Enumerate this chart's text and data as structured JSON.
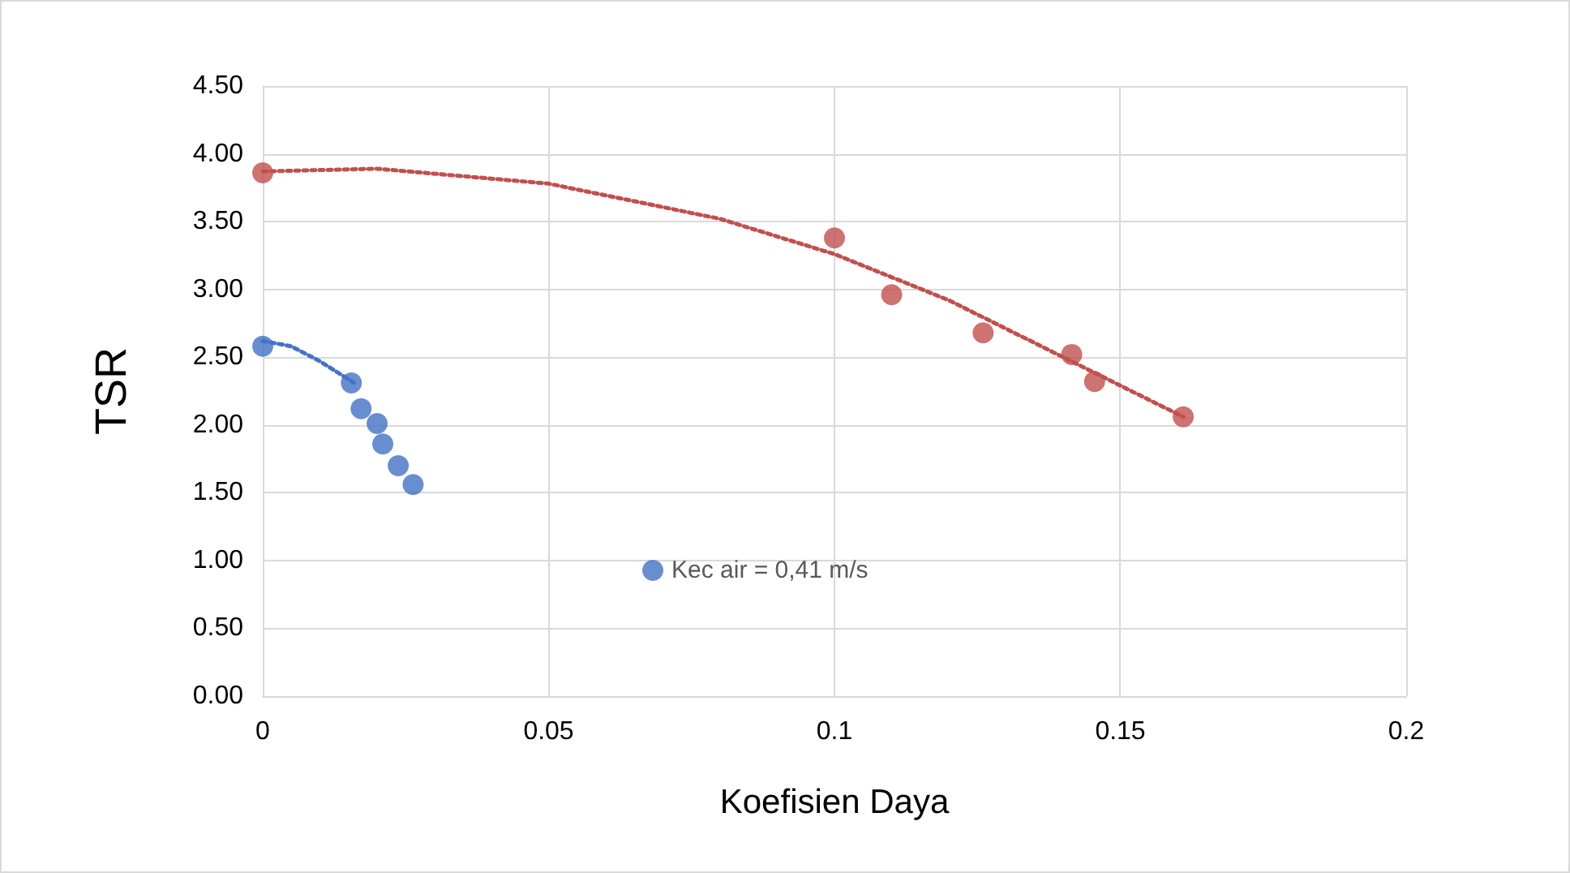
{
  "chart_data": {
    "type": "scatter",
    "xlabel": "Koefisien Daya",
    "ylabel": "TSR",
    "xlim": [
      0,
      0.2
    ],
    "xticks": [
      0,
      0.05,
      0.1,
      0.15,
      0.2
    ],
    "ylim": [
      0,
      4.5
    ],
    "yticks": [
      {
        "value": 0,
        "label": "0.00"
      },
      {
        "value": 0.5,
        "label": "0.50"
      },
      {
        "value": 1,
        "label": "1.00"
      },
      {
        "value": 1.5,
        "label": "1.50"
      },
      {
        "value": 2,
        "label": "2.00"
      },
      {
        "value": 2.5,
        "label": "2.50"
      },
      {
        "value": 3,
        "label": "3.00"
      },
      {
        "value": 3.5,
        "label": "3.50"
      },
      {
        "value": 4,
        "label": "4.00"
      },
      {
        "value": 4.5,
        "label": "4.50"
      }
    ],
    "grid": true,
    "legend": "center",
    "marker": "circle",
    "series": [
      {
        "name": "Kec air = 0,41 m/s",
        "color": "#4472c4",
        "x": [
          0,
          0.0155,
          0.0172,
          0.02,
          0.021,
          0.0237,
          0.0263
        ],
        "values": [
          2.58,
          2.31,
          2.12,
          2.01,
          1.86,
          1.7,
          1.56
        ]
      },
      {
        "color": "#c0504d",
        "x": [
          0,
          0.1,
          0.11,
          0.126,
          0.1415,
          0.1455,
          0.161
        ],
        "values": [
          3.86,
          3.38,
          2.96,
          2.68,
          2.52,
          2.32,
          2.06
        ]
      },
      {
        "type": "line",
        "marker": "none",
        "line_style": "dotted",
        "color": "#4472c4",
        "x": [
          0,
          0.005,
          0.01,
          0.016
        ],
        "values": [
          2.62,
          2.58,
          2.47,
          2.31
        ]
      },
      {
        "type": "line",
        "marker": "none",
        "line_style": "dotted",
        "color": "#c0504d",
        "x": [
          0,
          0.02,
          0.05,
          0.08,
          0.1,
          0.12,
          0.14,
          0.161
        ],
        "values": [
          3.87,
          3.89,
          3.78,
          3.52,
          3.26,
          2.92,
          2.5,
          2.06
        ]
      }
    ]
  }
}
